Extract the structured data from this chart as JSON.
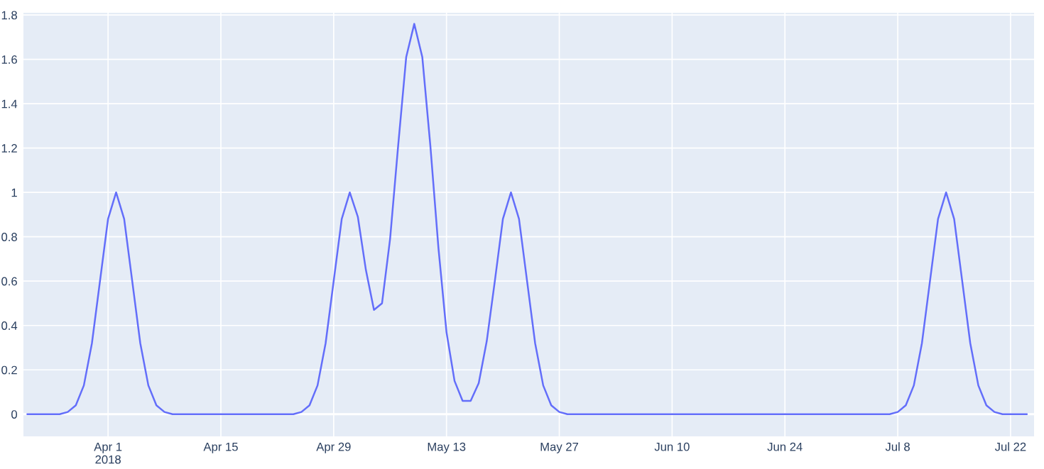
{
  "chart_data": {
    "type": "line",
    "x": [
      "2018-03-22",
      "2018-03-23",
      "2018-03-24",
      "2018-03-25",
      "2018-03-26",
      "2018-03-27",
      "2018-03-28",
      "2018-03-29",
      "2018-03-30",
      "2018-03-31",
      "2018-04-01",
      "2018-04-02",
      "2018-04-03",
      "2018-04-04",
      "2018-04-05",
      "2018-04-06",
      "2018-04-07",
      "2018-04-08",
      "2018-04-09",
      "2018-04-10",
      "2018-04-11",
      "2018-04-12",
      "2018-04-13",
      "2018-04-14",
      "2018-04-15",
      "2018-04-16",
      "2018-04-17",
      "2018-04-18",
      "2018-04-19",
      "2018-04-20",
      "2018-04-21",
      "2018-04-22",
      "2018-04-23",
      "2018-04-24",
      "2018-04-25",
      "2018-04-26",
      "2018-04-27",
      "2018-04-28",
      "2018-04-29",
      "2018-04-30",
      "2018-05-01",
      "2018-05-02",
      "2018-05-03",
      "2018-05-04",
      "2018-05-05",
      "2018-05-06",
      "2018-05-07",
      "2018-05-08",
      "2018-05-09",
      "2018-05-10",
      "2018-05-11",
      "2018-05-12",
      "2018-05-13",
      "2018-05-14",
      "2018-05-15",
      "2018-05-16",
      "2018-05-17",
      "2018-05-18",
      "2018-05-19",
      "2018-05-20",
      "2018-05-21",
      "2018-05-22",
      "2018-05-23",
      "2018-05-24",
      "2018-05-25",
      "2018-05-26",
      "2018-05-27",
      "2018-05-28",
      "2018-05-29",
      "2018-05-30",
      "2018-05-31",
      "2018-06-01",
      "2018-06-02",
      "2018-06-03",
      "2018-06-04",
      "2018-06-05",
      "2018-06-06",
      "2018-06-07",
      "2018-06-08",
      "2018-06-09",
      "2018-06-10",
      "2018-06-11",
      "2018-06-12",
      "2018-06-13",
      "2018-06-14",
      "2018-06-15",
      "2018-06-16",
      "2018-06-17",
      "2018-06-18",
      "2018-06-19",
      "2018-06-20",
      "2018-06-21",
      "2018-06-22",
      "2018-06-23",
      "2018-06-24",
      "2018-06-25",
      "2018-06-26",
      "2018-06-27",
      "2018-06-28",
      "2018-06-29",
      "2018-06-30",
      "2018-07-01",
      "2018-07-02",
      "2018-07-03",
      "2018-07-04",
      "2018-07-05",
      "2018-07-06",
      "2018-07-07",
      "2018-07-08",
      "2018-07-09",
      "2018-07-10",
      "2018-07-11",
      "2018-07-12",
      "2018-07-13",
      "2018-07-14",
      "2018-07-15",
      "2018-07-16",
      "2018-07-17",
      "2018-07-18",
      "2018-07-19",
      "2018-07-20",
      "2018-07-21",
      "2018-07-22",
      "2018-07-23",
      "2018-07-24"
    ],
    "series": [
      {
        "color": "#636efa",
        "values": [
          0,
          0,
          0,
          0,
          0,
          0.01,
          0.04,
          0.13,
          0.32,
          0.6,
          0.88,
          1,
          0.88,
          0.6,
          0.32,
          0.13,
          0.04,
          0.01,
          0,
          0,
          0,
          0,
          0,
          0,
          0,
          0,
          0,
          0,
          0,
          0,
          0,
          0,
          0,
          0,
          0.01,
          0.04,
          0.13,
          0.32,
          0.6,
          0.88,
          1,
          0.89,
          0.65,
          0.47,
          0.5,
          0.79,
          1.21,
          1.61,
          1.76,
          1.61,
          1.21,
          0.75,
          0.37,
          0.15,
          0.06,
          0.06,
          0.14,
          0.33,
          0.6,
          0.88,
          1,
          0.88,
          0.6,
          0.32,
          0.13,
          0.04,
          0.01,
          0,
          0,
          0,
          0,
          0,
          0,
          0,
          0,
          0,
          0,
          0,
          0,
          0,
          0,
          0,
          0,
          0,
          0,
          0,
          0,
          0,
          0,
          0,
          0,
          0,
          0,
          0,
          0,
          0,
          0,
          0,
          0,
          0,
          0,
          0,
          0,
          0,
          0,
          0,
          0,
          0,
          0.01,
          0.04,
          0.13,
          0.32,
          0.6,
          0.88,
          1,
          0.88,
          0.6,
          0.32,
          0.13,
          0.04,
          0.01,
          0,
          0,
          0,
          0
        ]
      }
    ],
    "xlim": [
      "2018-03-21T12:00",
      "2018-07-24T22:00"
    ],
    "xticks": [
      {
        "value": "2018-04-01",
        "label": "Apr 1\n2018"
      },
      {
        "value": "2018-04-15",
        "label": "Apr 15"
      },
      {
        "value": "2018-04-29",
        "label": "Apr 29"
      },
      {
        "value": "2018-05-13",
        "label": "May 13"
      },
      {
        "value": "2018-05-27",
        "label": "May 27"
      },
      {
        "value": "2018-06-10",
        "label": "Jun 10"
      },
      {
        "value": "2018-06-24",
        "label": "Jun 24"
      },
      {
        "value": "2018-07-08",
        "label": "Jul 8"
      },
      {
        "value": "2018-07-22",
        "label": "Jul 22"
      }
    ],
    "ylim": [
      -0.1,
      1.81
    ],
    "yticks": [
      0,
      0.2,
      0.4,
      0.6,
      0.8,
      1,
      1.2,
      1.4,
      1.6,
      1.8
    ],
    "grid": true,
    "marker": "none",
    "line_style": "solid"
  }
}
